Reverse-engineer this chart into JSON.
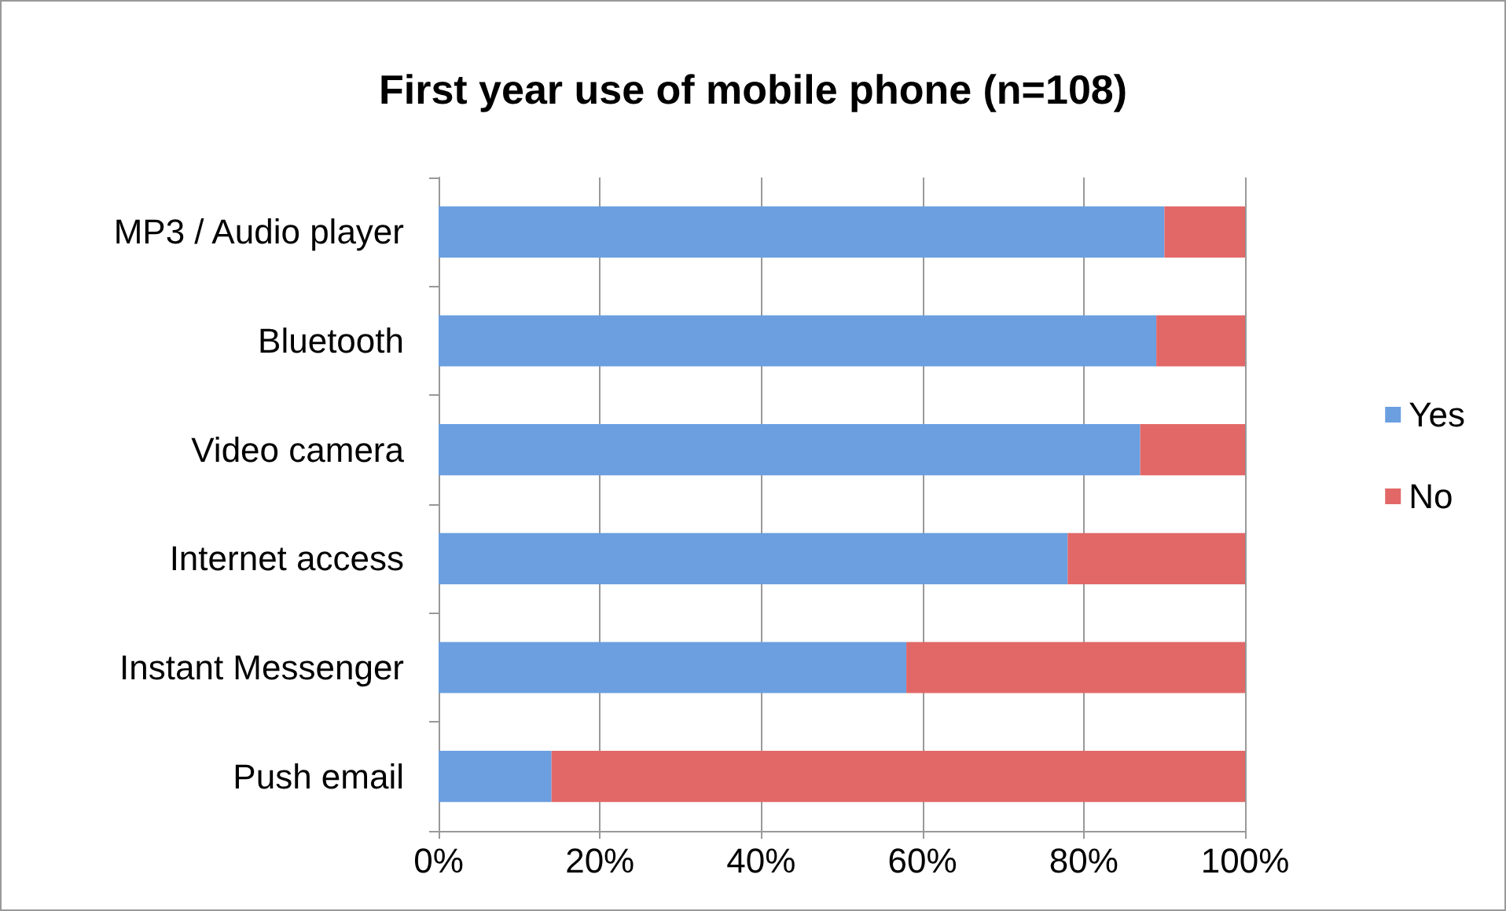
{
  "chart_data": {
    "type": "bar",
    "title": "First year use of mobile phone (n=108)",
    "orientation": "horizontal",
    "stacked": true,
    "categories": [
      "MP3 / Audio player",
      "Bluetooth",
      "Video camera",
      "Internet access",
      "Instant Messenger",
      "Push email"
    ],
    "series": [
      {
        "name": "Yes",
        "color": "#6b9fe0",
        "values": [
          90,
          89,
          87,
          78,
          58,
          14
        ]
      },
      {
        "name": "No",
        "color": "#e26868",
        "values": [
          10,
          11,
          13,
          22,
          42,
          86
        ]
      }
    ],
    "xlim": [
      0,
      100
    ],
    "xticks": [
      {
        "value": 0,
        "label": "0%"
      },
      {
        "value": 20,
        "label": "20%"
      },
      {
        "value": 40,
        "label": "40%"
      },
      {
        "value": 60,
        "label": "60%"
      },
      {
        "value": 80,
        "label": "80%"
      },
      {
        "value": 100,
        "label": "100%"
      }
    ],
    "grid": "x",
    "legend": "right"
  }
}
